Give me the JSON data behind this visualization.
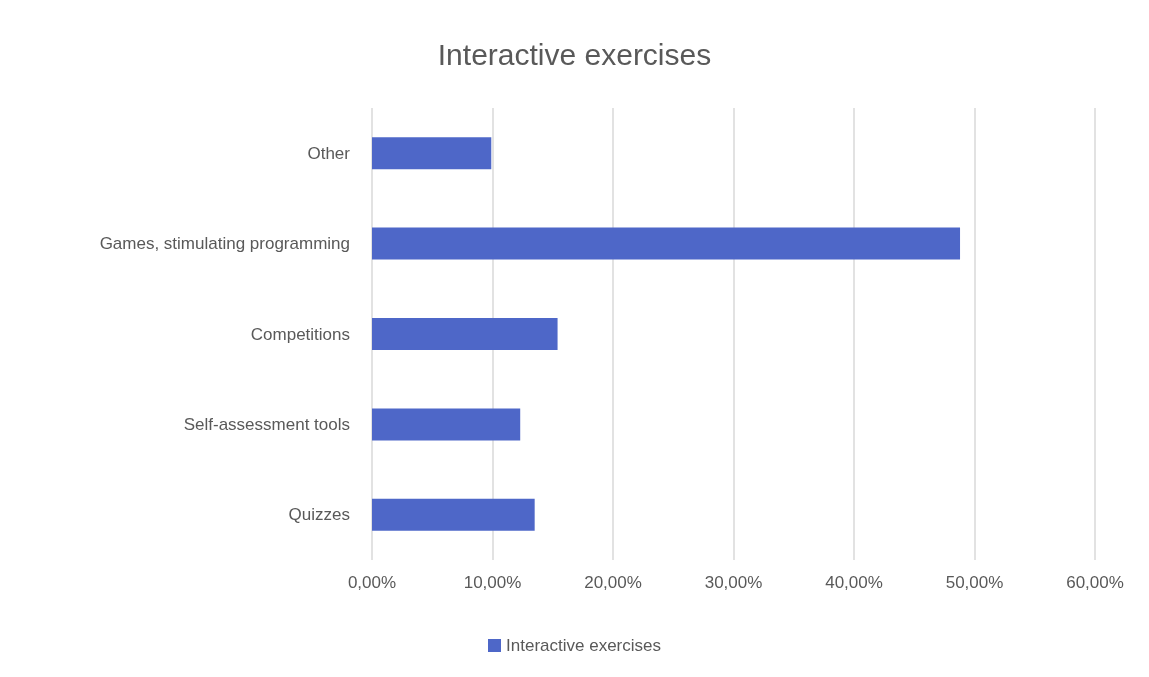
{
  "chart_data": {
    "type": "bar",
    "orientation": "horizontal",
    "title": "Interactive exercises",
    "categories": [
      "Other",
      "Games, stimulating programming",
      "Competitions",
      "Self-assessment tools",
      "Quizzes"
    ],
    "series": [
      {
        "name": "Interactive exercises",
        "color": "#4e67c8",
        "values": [
          9.9,
          48.8,
          15.4,
          12.3,
          13.5
        ]
      }
    ],
    "xlim": [
      0,
      60
    ],
    "xticks": [
      {
        "value": 0,
        "label": "0,00%"
      },
      {
        "value": 10,
        "label": "10,00%"
      },
      {
        "value": 20,
        "label": "20,00%"
      },
      {
        "value": 30,
        "label": "30,00%"
      },
      {
        "value": 40,
        "label": "40,00%"
      },
      {
        "value": 50,
        "label": "50,00%"
      },
      {
        "value": 60,
        "label": "60,00%"
      }
    ],
    "grid": "x",
    "legend": "bottom"
  }
}
